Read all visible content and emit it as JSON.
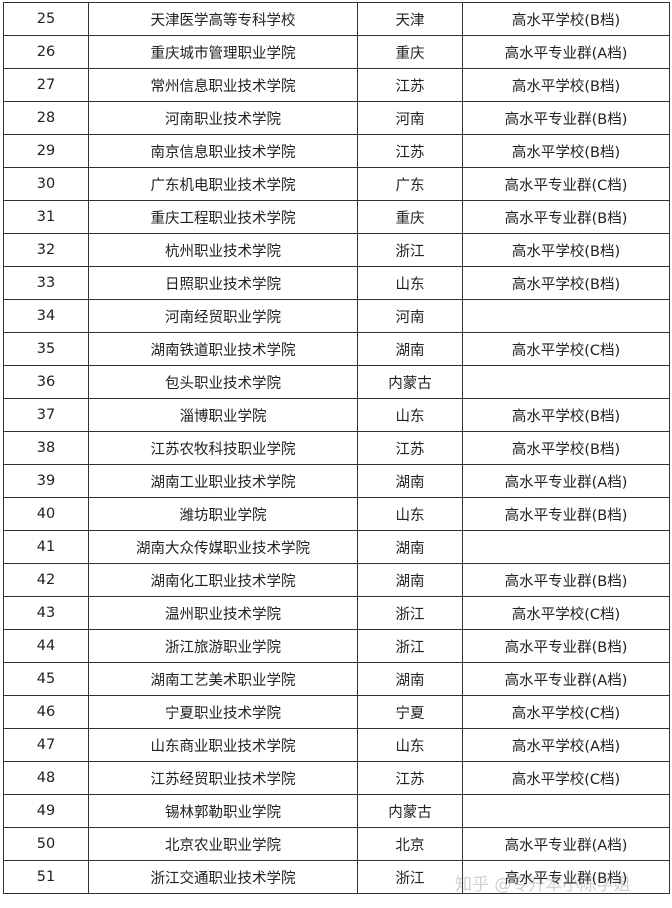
{
  "rows": [
    {
      "no": "25",
      "school": "天津医学高等专科学校",
      "province": "天津",
      "level": "高水平学校(B档)"
    },
    {
      "no": "26",
      "school": "重庆城市管理职业学院",
      "province": "重庆",
      "level": "高水平专业群(A档)"
    },
    {
      "no": "27",
      "school": "常州信息职业技术学院",
      "province": "江苏",
      "level": "高水平学校(B档)"
    },
    {
      "no": "28",
      "school": "河南职业技术学院",
      "province": "河南",
      "level": "高水平专业群(B档)"
    },
    {
      "no": "29",
      "school": "南京信息职业技术学院",
      "province": "江苏",
      "level": "高水平学校(B档)"
    },
    {
      "no": "30",
      "school": "广东机电职业技术学院",
      "province": "广东",
      "level": "高水平专业群(C档)"
    },
    {
      "no": "31",
      "school": "重庆工程职业技术学院",
      "province": "重庆",
      "level": "高水平专业群(B档)"
    },
    {
      "no": "32",
      "school": "杭州职业技术学院",
      "province": "浙江",
      "level": "高水平学校(B档)"
    },
    {
      "no": "33",
      "school": "日照职业技术学院",
      "province": "山东",
      "level": "高水平学校(B档)"
    },
    {
      "no": "34",
      "school": "河南经贸职业学院",
      "province": "河南",
      "level": ""
    },
    {
      "no": "35",
      "school": "湖南铁道职业技术学院",
      "province": "湖南",
      "level": "高水平学校(C档)"
    },
    {
      "no": "36",
      "school": "包头职业技术学院",
      "province": "内蒙古",
      "level": ""
    },
    {
      "no": "37",
      "school": "淄博职业学院",
      "province": "山东",
      "level": "高水平学校(B档)"
    },
    {
      "no": "38",
      "school": "江苏农牧科技职业学院",
      "province": "江苏",
      "level": "高水平学校(B档)"
    },
    {
      "no": "39",
      "school": "湖南工业职业技术学院",
      "province": "湖南",
      "level": "高水平专业群(A档)"
    },
    {
      "no": "40",
      "school": "潍坊职业学院",
      "province": "山东",
      "level": "高水平专业群(B档)"
    },
    {
      "no": "41",
      "school": "湖南大众传媒职业技术学院",
      "province": "湖南",
      "level": ""
    },
    {
      "no": "42",
      "school": "湖南化工职业技术学院",
      "province": "湖南",
      "level": "高水平专业群(B档)"
    },
    {
      "no": "43",
      "school": "温州职业技术学院",
      "province": "浙江",
      "level": "高水平学校(C档)"
    },
    {
      "no": "44",
      "school": "浙江旅游职业学院",
      "province": "浙江",
      "level": "高水平专业群(B档)"
    },
    {
      "no": "45",
      "school": "湖南工艺美术职业学院",
      "province": "湖南",
      "level": "高水平专业群(A档)"
    },
    {
      "no": "46",
      "school": "宁夏职业技术学院",
      "province": "宁夏",
      "level": "高水平学校(C档)"
    },
    {
      "no": "47",
      "school": "山东商业职业技术学院",
      "province": "山东",
      "level": "高水平学校(A档)"
    },
    {
      "no": "48",
      "school": "江苏经贸职业技术学院",
      "province": "江苏",
      "level": "高水平学校(C档)"
    },
    {
      "no": "49",
      "school": "锡林郭勒职业学院",
      "province": "内蒙古",
      "level": ""
    },
    {
      "no": "50",
      "school": "北京农业职业学院",
      "province": "北京",
      "level": "高水平专业群(A档)"
    },
    {
      "no": "51",
      "school": "浙江交通职业技术学院",
      "province": "浙江",
      "level": "高水平专业群(B档)"
    }
  ],
  "watermark": "知乎 @专升本小陈学姐"
}
